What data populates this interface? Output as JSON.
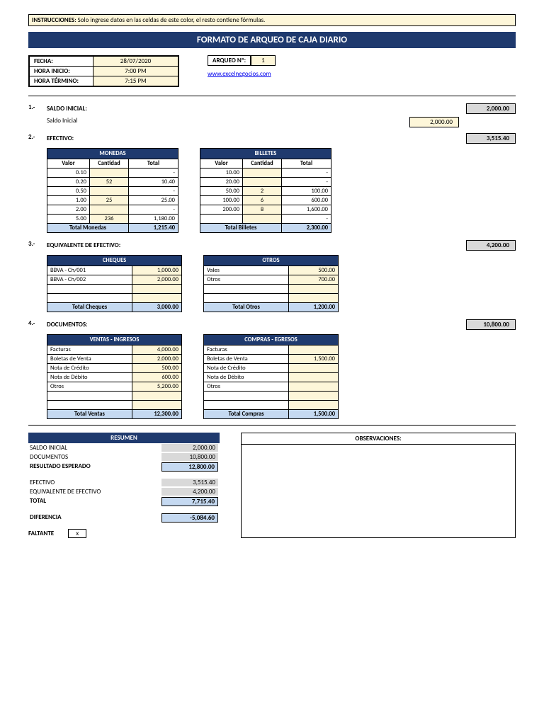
{
  "instructions": {
    "label": "INSTRUCCIONES",
    "text": ": Solo ingrese datos en las celdas de este color, el resto contiene fórmulas."
  },
  "title": "FORMATO DE ARQUEO DE CAJA DIARIO",
  "header": {
    "fecha_lbl": "FECHA:",
    "fecha": "28/07/2020",
    "inicio_lbl": "HORA INICIO:",
    "inicio": "7:00 PM",
    "termino_lbl": "HORA TÉRMINO:",
    "termino": "7:15 PM",
    "arqueo_lbl": "ARQUEO Nº:",
    "arqueo": "1",
    "link": "www.excelnegocios.com"
  },
  "s1": {
    "num": "1.-",
    "title": "SALDO INICIAL:",
    "total": "2,000.00",
    "sub_lbl": "Saldo Inicial",
    "sub_val": "2,000.00"
  },
  "s2": {
    "num": "2.-",
    "title": "EFECTIVO:",
    "total": "3,515.40",
    "monedas": {
      "hdr": "MONEDAS",
      "c1": "Valor",
      "c2": "Cantidad",
      "c3": "Total",
      "rows": [
        [
          "0.10",
          "",
          "-"
        ],
        [
          "0.20",
          "52",
          "10.40"
        ],
        [
          "0.50",
          "",
          "-"
        ],
        [
          "1.00",
          "25",
          "25.00"
        ],
        [
          "2.00",
          "",
          "-"
        ],
        [
          "5.00",
          "236",
          "1,180.00"
        ]
      ],
      "tot_lbl": "Total Monedas",
      "tot": "1,215.40"
    },
    "billetes": {
      "hdr": "BILLETES",
      "c1": "Valor",
      "c2": "Cantidad",
      "c3": "Total",
      "rows": [
        [
          "10.00",
          "",
          "-"
        ],
        [
          "20.00",
          "",
          "-"
        ],
        [
          "50.00",
          "2",
          "100.00"
        ],
        [
          "100.00",
          "6",
          "600.00"
        ],
        [
          "200.00",
          "8",
          "1,600.00"
        ],
        [
          "",
          "",
          "-"
        ]
      ],
      "tot_lbl": "Total Billetes",
      "tot": "2,300.00"
    }
  },
  "s3": {
    "num": "3.-",
    "title": "EQUIVALENTE DE EFECTIVO:",
    "total": "4,200.00",
    "cheques": {
      "hdr": "CHEQUES",
      "rows": [
        [
          "BBVA - Ch/001",
          "1,000.00"
        ],
        [
          "BBVA - Ch/002",
          "2,000.00"
        ],
        [
          "",
          ""
        ],
        [
          "",
          ""
        ]
      ],
      "tot_lbl": "Total Cheques",
      "tot": "3,000.00"
    },
    "otros": {
      "hdr": "OTROS",
      "rows": [
        [
          "Vales",
          "500.00"
        ],
        [
          "Otros",
          "700.00"
        ],
        [
          "",
          ""
        ],
        [
          "",
          ""
        ]
      ],
      "tot_lbl": "Total Otros",
      "tot": "1,200.00"
    }
  },
  "s4": {
    "num": "4.-",
    "title": "DOCUMENTOS:",
    "total": "10,800.00",
    "ventas": {
      "hdr": "VENTAS - INGRESOS",
      "rows": [
        [
          "Facturas",
          "4,000.00"
        ],
        [
          "Boletas de Venta",
          "2,000.00"
        ],
        [
          "Nota de Crédito",
          "500.00"
        ],
        [
          "Nota de Débito",
          "600.00"
        ],
        [
          "Otros",
          "5,200.00"
        ],
        [
          "",
          ""
        ],
        [
          "",
          ""
        ]
      ],
      "tot_lbl": "Total Ventas",
      "tot": "12,300.00"
    },
    "compras": {
      "hdr": "COMPRAS - EGRESOS",
      "rows": [
        [
          "Facturas",
          ""
        ],
        [
          "Boletas de Venta",
          "1,500.00"
        ],
        [
          "Nota de Crédito",
          ""
        ],
        [
          "Nota de Débito",
          ""
        ],
        [
          "Otros",
          ""
        ],
        [
          "",
          ""
        ],
        [
          "",
          ""
        ]
      ],
      "tot_lbl": "Total Compras",
      "tot": "1,500.00"
    }
  },
  "resumen": {
    "hdr": "RESUMEN",
    "r1_l": "SALDO INICIAL",
    "r1_v": "2,000.00",
    "r2_l": "DOCUMENTOS",
    "r2_v": "10,800.00",
    "r3_l": "RESULTADO ESPERADO",
    "r3_v": "12,800.00",
    "r4_l": "EFECTIVO",
    "r4_v": "3,515.40",
    "r5_l": "EQUIVALENTE DE EFECTIVO",
    "r5_v": "4,200.00",
    "r6_l": "TOTAL",
    "r6_v": "7,715.40",
    "r7_l": "DIFERENCIA",
    "r7_v": "-5,084.60",
    "flt_l": "FALTANTE",
    "flt_v": "x"
  },
  "obs": {
    "hdr": "OBSERVACIONES:"
  }
}
